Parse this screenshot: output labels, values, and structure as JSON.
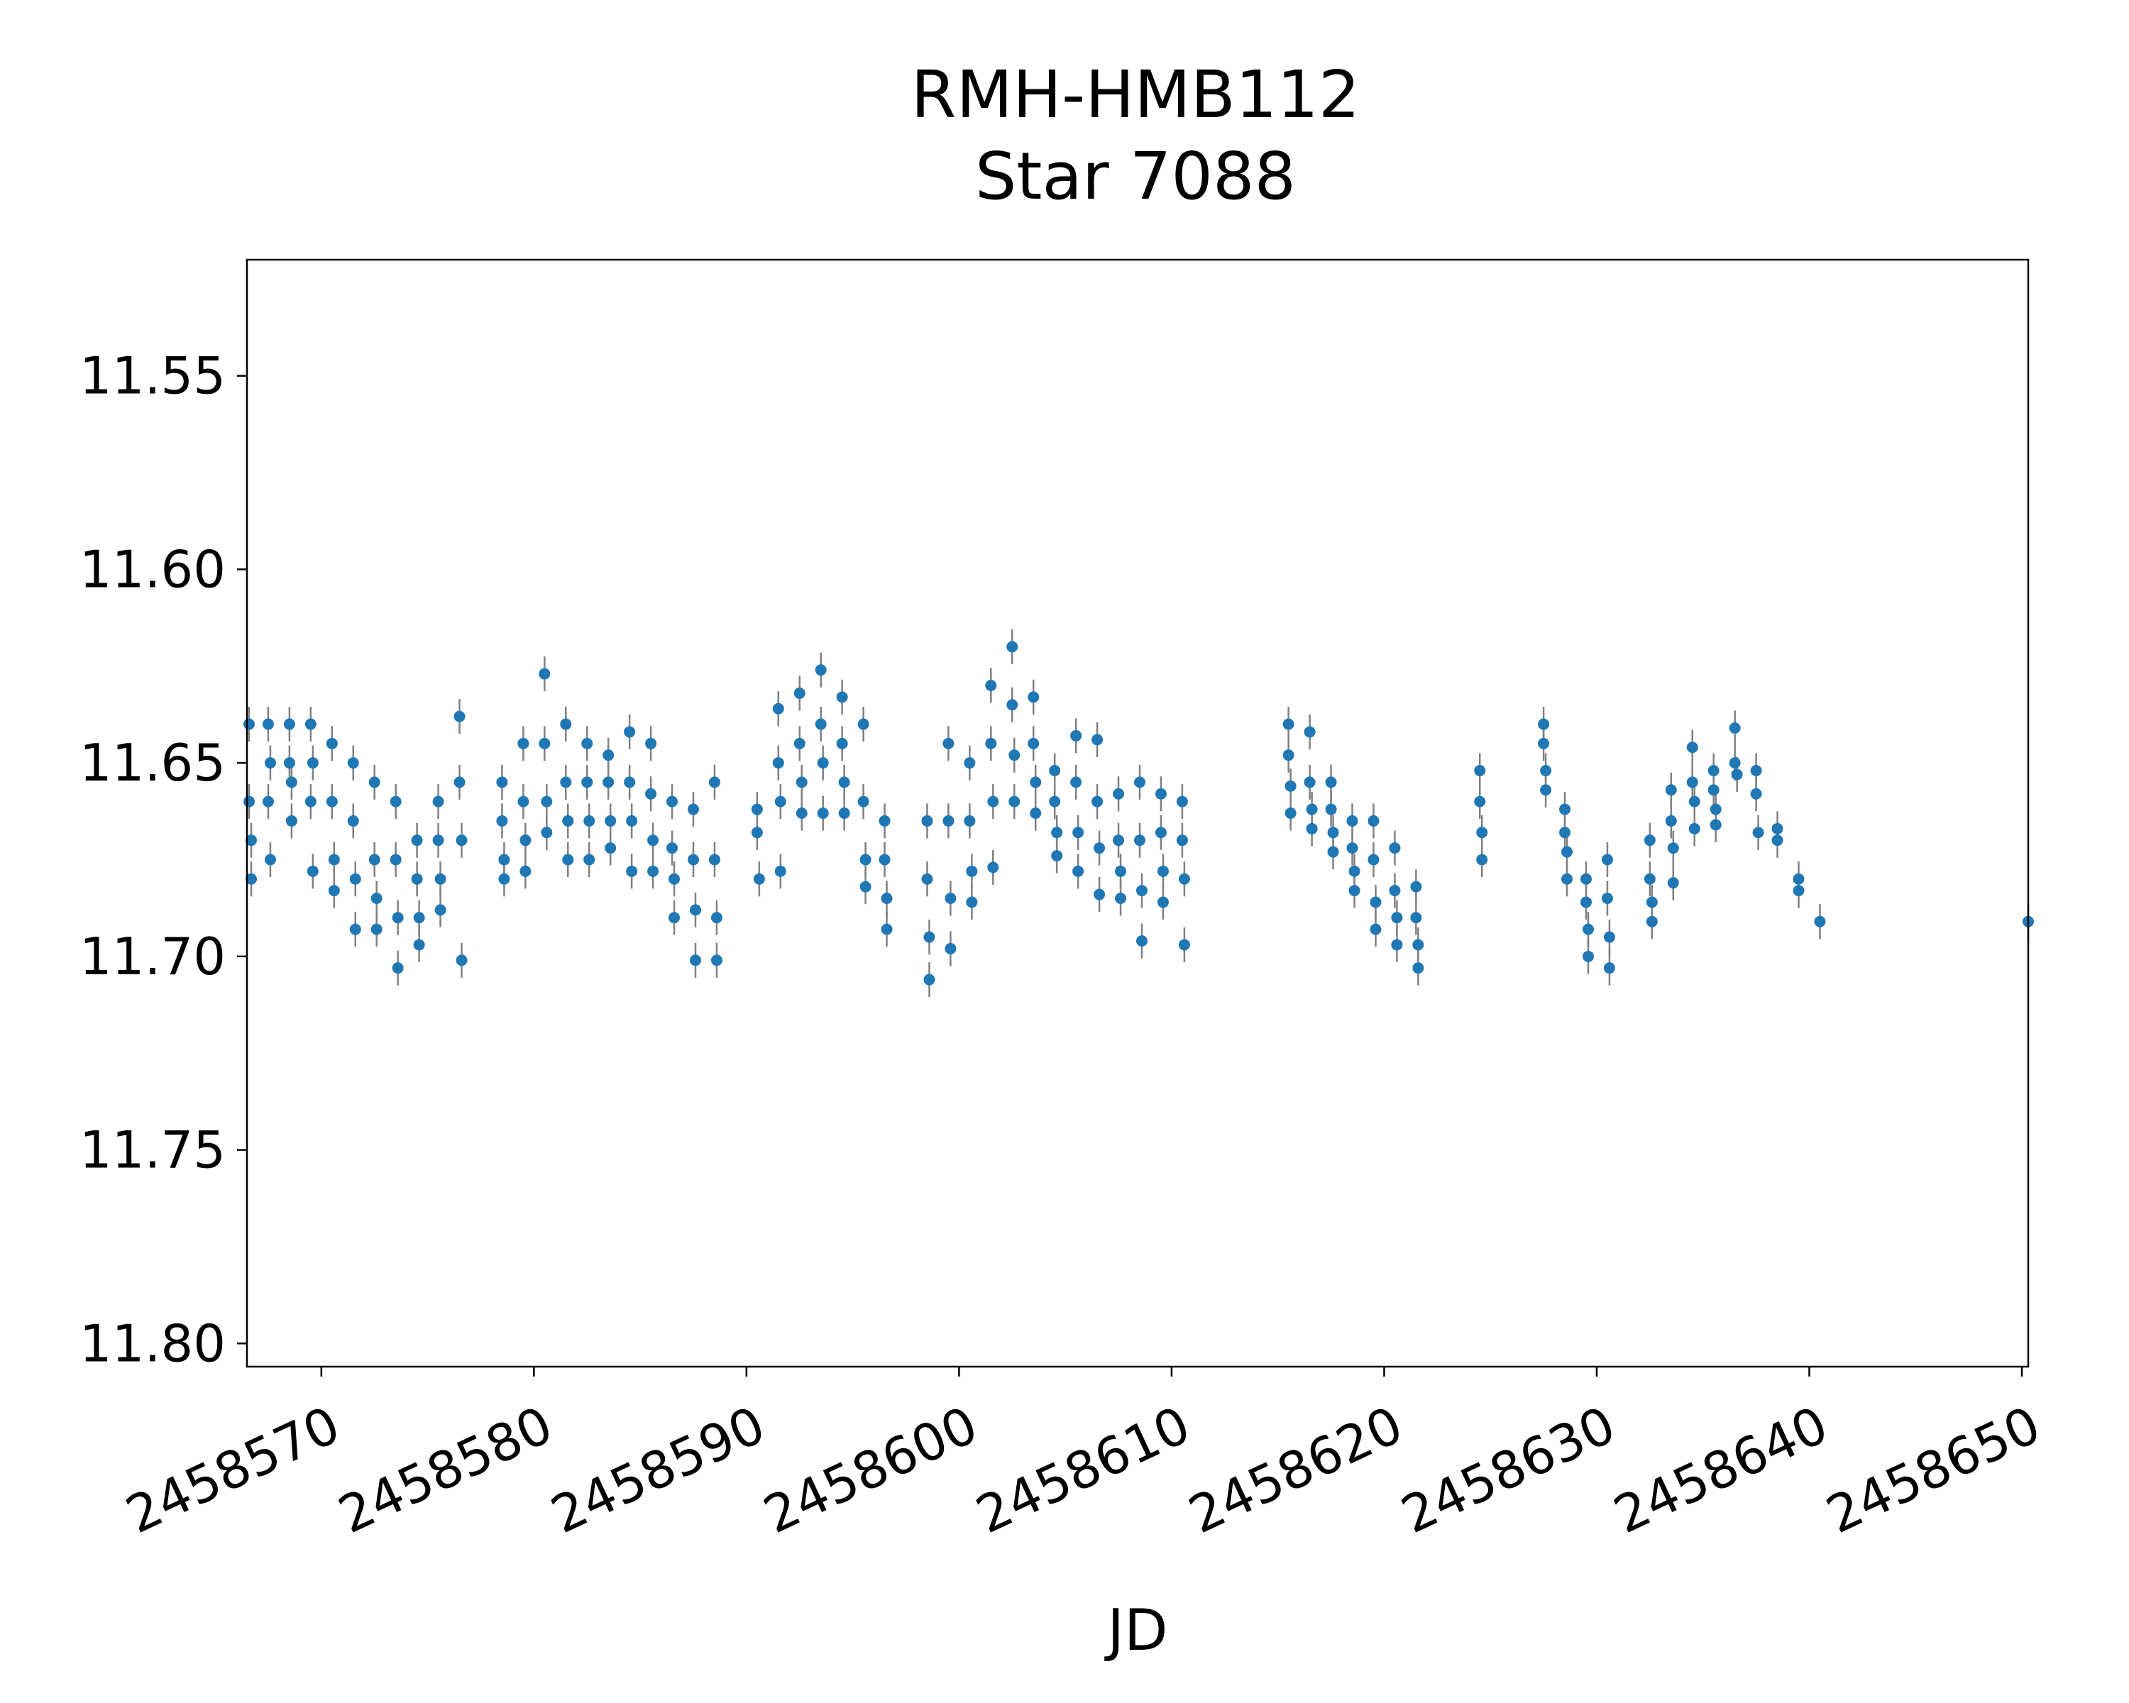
{
  "chart_data": {
    "type": "scatter",
    "title_line1": "RMH-HMB112",
    "title_line2": "Star 7088",
    "xlabel": "JD",
    "ylabel": "",
    "xlim": [
      2458566.5,
      2458650.3
    ],
    "ylim": [
      11.52,
      11.806
    ],
    "y_inverted": true,
    "grid": false,
    "error_bars": true,
    "series_color": "#1f77b4",
    "errorbar_color": "#808080",
    "xticks": [
      2458570,
      2458580,
      2458590,
      2458600,
      2458610,
      2458620,
      2458630,
      2458640,
      2458650
    ],
    "xtick_labels": [
      "2458570",
      "2458580",
      "2458590",
      "2458600",
      "2458610",
      "2458620",
      "2458630",
      "2458640",
      "2458650"
    ],
    "yticks": [
      11.55,
      11.6,
      11.65,
      11.7,
      11.75,
      11.8
    ],
    "ytick_labels": [
      "11.55",
      "11.60",
      "11.65",
      "11.70",
      "11.75",
      "11.80"
    ],
    "points": [
      {
        "x": 2458566.6,
        "y": 11.64
      },
      {
        "x": 2458566.6,
        "y": 11.66
      },
      {
        "x": 2458566.7,
        "y": 11.68
      },
      {
        "x": 2458566.7,
        "y": 11.67
      },
      {
        "x": 2458567.5,
        "y": 11.64
      },
      {
        "x": 2458567.5,
        "y": 11.66
      },
      {
        "x": 2458567.6,
        "y": 11.675
      },
      {
        "x": 2458567.6,
        "y": 11.65
      },
      {
        "x": 2458568.5,
        "y": 11.64
      },
      {
        "x": 2458568.5,
        "y": 11.65
      },
      {
        "x": 2458568.6,
        "y": 11.655
      },
      {
        "x": 2458568.6,
        "y": 11.665
      },
      {
        "x": 2458569.5,
        "y": 11.64
      },
      {
        "x": 2458569.5,
        "y": 11.66
      },
      {
        "x": 2458569.6,
        "y": 11.65
      },
      {
        "x": 2458569.6,
        "y": 11.678
      },
      {
        "x": 2458570.5,
        "y": 11.645
      },
      {
        "x": 2458570.5,
        "y": 11.66
      },
      {
        "x": 2458570.6,
        "y": 11.675
      },
      {
        "x": 2458570.6,
        "y": 11.683
      },
      {
        "x": 2458571.5,
        "y": 11.65
      },
      {
        "x": 2458571.5,
        "y": 11.665
      },
      {
        "x": 2458571.6,
        "y": 11.68
      },
      {
        "x": 2458571.6,
        "y": 11.693
      },
      {
        "x": 2458572.5,
        "y": 11.655
      },
      {
        "x": 2458572.5,
        "y": 11.675
      },
      {
        "x": 2458572.6,
        "y": 11.685
      },
      {
        "x": 2458572.6,
        "y": 11.693
      },
      {
        "x": 2458573.5,
        "y": 11.66
      },
      {
        "x": 2458573.5,
        "y": 11.675
      },
      {
        "x": 2458573.6,
        "y": 11.69
      },
      {
        "x": 2458573.6,
        "y": 11.703
      },
      {
        "x": 2458574.5,
        "y": 11.67
      },
      {
        "x": 2458574.5,
        "y": 11.68
      },
      {
        "x": 2458574.6,
        "y": 11.69
      },
      {
        "x": 2458574.6,
        "y": 11.697
      },
      {
        "x": 2458575.5,
        "y": 11.66
      },
      {
        "x": 2458575.5,
        "y": 11.67
      },
      {
        "x": 2458575.6,
        "y": 11.68
      },
      {
        "x": 2458575.6,
        "y": 11.688
      },
      {
        "x": 2458576.5,
        "y": 11.638
      },
      {
        "x": 2458576.5,
        "y": 11.655
      },
      {
        "x": 2458576.6,
        "y": 11.67
      },
      {
        "x": 2458576.6,
        "y": 11.701
      },
      {
        "x": 2458578.5,
        "y": 11.655
      },
      {
        "x": 2458578.5,
        "y": 11.665
      },
      {
        "x": 2458578.6,
        "y": 11.675
      },
      {
        "x": 2458578.6,
        "y": 11.68
      },
      {
        "x": 2458579.5,
        "y": 11.645
      },
      {
        "x": 2458579.5,
        "y": 11.66
      },
      {
        "x": 2458579.6,
        "y": 11.67
      },
      {
        "x": 2458579.6,
        "y": 11.678
      },
      {
        "x": 2458580.5,
        "y": 11.627
      },
      {
        "x": 2458580.5,
        "y": 11.645
      },
      {
        "x": 2458580.6,
        "y": 11.66
      },
      {
        "x": 2458580.6,
        "y": 11.668
      },
      {
        "x": 2458581.5,
        "y": 11.64
      },
      {
        "x": 2458581.5,
        "y": 11.655
      },
      {
        "x": 2458581.6,
        "y": 11.665
      },
      {
        "x": 2458581.6,
        "y": 11.675
      },
      {
        "x": 2458582.5,
        "y": 11.645
      },
      {
        "x": 2458582.5,
        "y": 11.655
      },
      {
        "x": 2458582.6,
        "y": 11.665
      },
      {
        "x": 2458582.6,
        "y": 11.675
      },
      {
        "x": 2458583.5,
        "y": 11.648
      },
      {
        "x": 2458583.5,
        "y": 11.655
      },
      {
        "x": 2458583.6,
        "y": 11.665
      },
      {
        "x": 2458583.6,
        "y": 11.672
      },
      {
        "x": 2458584.5,
        "y": 11.642
      },
      {
        "x": 2458584.5,
        "y": 11.655
      },
      {
        "x": 2458584.6,
        "y": 11.665
      },
      {
        "x": 2458584.6,
        "y": 11.678
      },
      {
        "x": 2458585.5,
        "y": 11.645
      },
      {
        "x": 2458585.5,
        "y": 11.658
      },
      {
        "x": 2458585.6,
        "y": 11.67
      },
      {
        "x": 2458585.6,
        "y": 11.678
      },
      {
        "x": 2458586.5,
        "y": 11.66
      },
      {
        "x": 2458586.5,
        "y": 11.672
      },
      {
        "x": 2458586.6,
        "y": 11.68
      },
      {
        "x": 2458586.6,
        "y": 11.69
      },
      {
        "x": 2458587.5,
        "y": 11.662
      },
      {
        "x": 2458587.5,
        "y": 11.675
      },
      {
        "x": 2458587.6,
        "y": 11.688
      },
      {
        "x": 2458587.6,
        "y": 11.701
      },
      {
        "x": 2458588.5,
        "y": 11.655
      },
      {
        "x": 2458588.5,
        "y": 11.675
      },
      {
        "x": 2458588.6,
        "y": 11.69
      },
      {
        "x": 2458588.6,
        "y": 11.701
      },
      {
        "x": 2458590.5,
        "y": 11.662
      },
      {
        "x": 2458590.5,
        "y": 11.668
      },
      {
        "x": 2458590.6,
        "y": 11.68
      },
      {
        "x": 2458591.5,
        "y": 11.636
      },
      {
        "x": 2458591.5,
        "y": 11.65
      },
      {
        "x": 2458591.6,
        "y": 11.66
      },
      {
        "x": 2458591.6,
        "y": 11.678
      },
      {
        "x": 2458592.5,
        "y": 11.632
      },
      {
        "x": 2458592.5,
        "y": 11.645
      },
      {
        "x": 2458592.6,
        "y": 11.655
      },
      {
        "x": 2458592.6,
        "y": 11.663
      },
      {
        "x": 2458593.5,
        "y": 11.626
      },
      {
        "x": 2458593.5,
        "y": 11.64
      },
      {
        "x": 2458593.6,
        "y": 11.65
      },
      {
        "x": 2458593.6,
        "y": 11.663
      },
      {
        "x": 2458594.5,
        "y": 11.633
      },
      {
        "x": 2458594.5,
        "y": 11.645
      },
      {
        "x": 2458594.6,
        "y": 11.655
      },
      {
        "x": 2458594.6,
        "y": 11.663
      },
      {
        "x": 2458595.5,
        "y": 11.64
      },
      {
        "x": 2458595.5,
        "y": 11.66
      },
      {
        "x": 2458595.6,
        "y": 11.675
      },
      {
        "x": 2458595.6,
        "y": 11.682
      },
      {
        "x": 2458596.5,
        "y": 11.665
      },
      {
        "x": 2458596.5,
        "y": 11.675
      },
      {
        "x": 2458596.6,
        "y": 11.685
      },
      {
        "x": 2458596.6,
        "y": 11.693
      },
      {
        "x": 2458598.5,
        "y": 11.665
      },
      {
        "x": 2458598.5,
        "y": 11.68
      },
      {
        "x": 2458598.6,
        "y": 11.695
      },
      {
        "x": 2458598.6,
        "y": 11.706
      },
      {
        "x": 2458599.5,
        "y": 11.645
      },
      {
        "x": 2458599.5,
        "y": 11.665
      },
      {
        "x": 2458599.6,
        "y": 11.685
      },
      {
        "x": 2458599.6,
        "y": 11.698
      },
      {
        "x": 2458600.5,
        "y": 11.65
      },
      {
        "x": 2458600.5,
        "y": 11.665
      },
      {
        "x": 2458600.6,
        "y": 11.678
      },
      {
        "x": 2458600.6,
        "y": 11.686
      },
      {
        "x": 2458601.5,
        "y": 11.63
      },
      {
        "x": 2458601.5,
        "y": 11.645
      },
      {
        "x": 2458601.6,
        "y": 11.66
      },
      {
        "x": 2458601.6,
        "y": 11.677
      },
      {
        "x": 2458602.5,
        "y": 11.62
      },
      {
        "x": 2458602.5,
        "y": 11.635
      },
      {
        "x": 2458602.6,
        "y": 11.648
      },
      {
        "x": 2458602.6,
        "y": 11.66
      },
      {
        "x": 2458603.5,
        "y": 11.633
      },
      {
        "x": 2458603.5,
        "y": 11.645
      },
      {
        "x": 2458603.6,
        "y": 11.655
      },
      {
        "x": 2458603.6,
        "y": 11.663
      },
      {
        "x": 2458604.5,
        "y": 11.652
      },
      {
        "x": 2458604.5,
        "y": 11.66
      },
      {
        "x": 2458604.6,
        "y": 11.668
      },
      {
        "x": 2458604.6,
        "y": 11.674
      },
      {
        "x": 2458605.5,
        "y": 11.643
      },
      {
        "x": 2458605.5,
        "y": 11.655
      },
      {
        "x": 2458605.6,
        "y": 11.668
      },
      {
        "x": 2458605.6,
        "y": 11.678
      },
      {
        "x": 2458606.5,
        "y": 11.644
      },
      {
        "x": 2458606.5,
        "y": 11.66
      },
      {
        "x": 2458606.6,
        "y": 11.672
      },
      {
        "x": 2458606.6,
        "y": 11.684
      },
      {
        "x": 2458607.5,
        "y": 11.658
      },
      {
        "x": 2458607.5,
        "y": 11.67
      },
      {
        "x": 2458607.6,
        "y": 11.678
      },
      {
        "x": 2458607.6,
        "y": 11.685
      },
      {
        "x": 2458608.5,
        "y": 11.655
      },
      {
        "x": 2458608.5,
        "y": 11.67
      },
      {
        "x": 2458608.6,
        "y": 11.683
      },
      {
        "x": 2458608.6,
        "y": 11.696
      },
      {
        "x": 2458609.5,
        "y": 11.658
      },
      {
        "x": 2458609.5,
        "y": 11.668
      },
      {
        "x": 2458609.6,
        "y": 11.678
      },
      {
        "x": 2458609.6,
        "y": 11.686
      },
      {
        "x": 2458610.5,
        "y": 11.66
      },
      {
        "x": 2458610.5,
        "y": 11.67
      },
      {
        "x": 2458610.6,
        "y": 11.68
      },
      {
        "x": 2458610.6,
        "y": 11.697
      },
      {
        "x": 2458615.5,
        "y": 11.64
      },
      {
        "x": 2458615.5,
        "y": 11.648
      },
      {
        "x": 2458615.6,
        "y": 11.656
      },
      {
        "x": 2458615.6,
        "y": 11.663
      },
      {
        "x": 2458616.5,
        "y": 11.642
      },
      {
        "x": 2458616.5,
        "y": 11.655
      },
      {
        "x": 2458616.6,
        "y": 11.662
      },
      {
        "x": 2458616.6,
        "y": 11.667
      },
      {
        "x": 2458617.5,
        "y": 11.655
      },
      {
        "x": 2458617.5,
        "y": 11.662
      },
      {
        "x": 2458617.6,
        "y": 11.668
      },
      {
        "x": 2458617.6,
        "y": 11.673
      },
      {
        "x": 2458618.5,
        "y": 11.665
      },
      {
        "x": 2458618.5,
        "y": 11.672
      },
      {
        "x": 2458618.6,
        "y": 11.678
      },
      {
        "x": 2458618.6,
        "y": 11.683
      },
      {
        "x": 2458619.5,
        "y": 11.665
      },
      {
        "x": 2458619.5,
        "y": 11.675
      },
      {
        "x": 2458619.6,
        "y": 11.686
      },
      {
        "x": 2458619.6,
        "y": 11.693
      },
      {
        "x": 2458620.5,
        "y": 11.672
      },
      {
        "x": 2458620.5,
        "y": 11.683
      },
      {
        "x": 2458620.6,
        "y": 11.69
      },
      {
        "x": 2458620.6,
        "y": 11.697
      },
      {
        "x": 2458621.5,
        "y": 11.682
      },
      {
        "x": 2458621.5,
        "y": 11.69
      },
      {
        "x": 2458621.6,
        "y": 11.697
      },
      {
        "x": 2458621.6,
        "y": 11.703
      },
      {
        "x": 2458624.5,
        "y": 11.652
      },
      {
        "x": 2458624.5,
        "y": 11.66
      },
      {
        "x": 2458624.6,
        "y": 11.668
      },
      {
        "x": 2458624.6,
        "y": 11.675
      },
      {
        "x": 2458627.5,
        "y": 11.64
      },
      {
        "x": 2458627.5,
        "y": 11.645
      },
      {
        "x": 2458627.6,
        "y": 11.652
      },
      {
        "x": 2458627.6,
        "y": 11.657
      },
      {
        "x": 2458628.5,
        "y": 11.662
      },
      {
        "x": 2458628.5,
        "y": 11.668
      },
      {
        "x": 2458628.6,
        "y": 11.673
      },
      {
        "x": 2458628.6,
        "y": 11.68
      },
      {
        "x": 2458629.5,
        "y": 11.68
      },
      {
        "x": 2458629.5,
        "y": 11.686
      },
      {
        "x": 2458629.6,
        "y": 11.693
      },
      {
        "x": 2458629.6,
        "y": 11.7
      },
      {
        "x": 2458630.5,
        "y": 11.675
      },
      {
        "x": 2458630.5,
        "y": 11.685
      },
      {
        "x": 2458630.6,
        "y": 11.695
      },
      {
        "x": 2458630.6,
        "y": 11.703
      },
      {
        "x": 2458632.5,
        "y": 11.67
      },
      {
        "x": 2458632.5,
        "y": 11.68
      },
      {
        "x": 2458632.6,
        "y": 11.686
      },
      {
        "x": 2458632.6,
        "y": 11.691
      },
      {
        "x": 2458633.5,
        "y": 11.657
      },
      {
        "x": 2458633.5,
        "y": 11.665
      },
      {
        "x": 2458633.6,
        "y": 11.672
      },
      {
        "x": 2458633.6,
        "y": 11.681
      },
      {
        "x": 2458634.5,
        "y": 11.646
      },
      {
        "x": 2458634.5,
        "y": 11.655
      },
      {
        "x": 2458634.6,
        "y": 11.66
      },
      {
        "x": 2458634.6,
        "y": 11.667
      },
      {
        "x": 2458635.5,
        "y": 11.652
      },
      {
        "x": 2458635.5,
        "y": 11.657
      },
      {
        "x": 2458635.6,
        "y": 11.662
      },
      {
        "x": 2458635.6,
        "y": 11.666
      },
      {
        "x": 2458636.5,
        "y": 11.641
      },
      {
        "x": 2458636.5,
        "y": 11.65
      },
      {
        "x": 2458636.6,
        "y": 11.653
      },
      {
        "x": 2458637.5,
        "y": 11.652
      },
      {
        "x": 2458637.5,
        "y": 11.658
      },
      {
        "x": 2458637.6,
        "y": 11.668
      },
      {
        "x": 2458638.5,
        "y": 11.667
      },
      {
        "x": 2458638.5,
        "y": 11.67
      },
      {
        "x": 2458639.5,
        "y": 11.68
      },
      {
        "x": 2458639.5,
        "y": 11.683
      },
      {
        "x": 2458640.5,
        "y": 11.691
      },
      {
        "x": 2458650.3,
        "y": 11.691
      }
    ]
  }
}
